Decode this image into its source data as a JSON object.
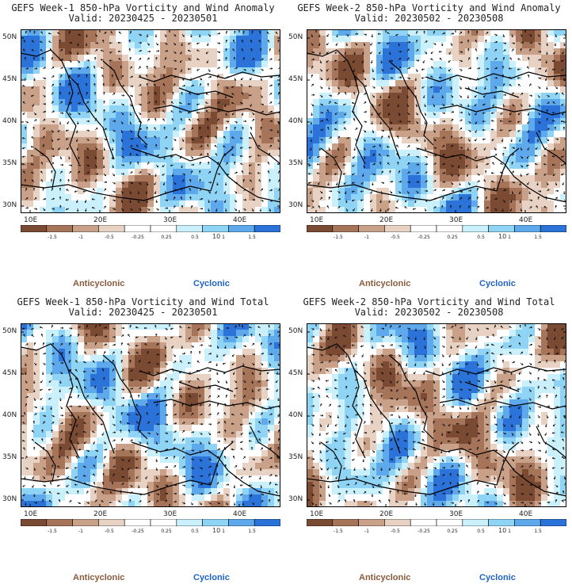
{
  "colors": {
    "brown_dark": "#7a4a32",
    "brown_mid": "#a67459",
    "brown_light": "#c9a189",
    "tan": "#e8d2c4",
    "white": "#ffffff",
    "cyan_light": "#c9f0fb",
    "blue_light": "#8fd4f4",
    "blue_mid": "#5ea8ec",
    "blue_dark": "#2b73d9",
    "anticyclonic_text": "#8b5a3c",
    "cyclonic_text": "#1f63c6"
  },
  "panels": [
    {
      "title": "GEFS Week-1 850-hPa Vorticity and Wind Anomaly",
      "valid": "Valid: 20230425 - 20230501",
      "field_seed": 1,
      "extra_label": "10",
      "legend": {
        "anticyclonic": "Anticyclonic",
        "cyclonic": "Cyclonic"
      }
    },
    {
      "title": "GEFS Week-2 850-hPa Vorticity and Wind Anomaly",
      "valid": "Valid: 20230502 - 20230508",
      "field_seed": 2,
      "extra_label": "10",
      "legend": {
        "anticyclonic": "Anticyclonic",
        "cyclonic": "Cyclonic"
      }
    },
    {
      "title": "GEFS Week-1 850-hPa Vorticity and Wind Total",
      "valid": "Valid: 20230425 - 20230501",
      "field_seed": 3,
      "extra_label": "10",
      "legend": {
        "anticyclonic": "Anticyclonic",
        "cyclonic": "Cyclonic"
      }
    },
    {
      "title": "GEFS Week-2 850-hPa Vorticity and Wind Total",
      "valid": "Valid: 20230502 - 20230508",
      "field_seed": 4,
      "extra_label": "10",
      "legend": {
        "anticyclonic": "Anticyclonic",
        "cyclonic": "Cyclonic"
      }
    }
  ],
  "lat_labels": [
    "50N",
    "45N",
    "40N",
    "35N",
    "30N"
  ],
  "lon_labels": [
    "10E",
    "20E",
    "30E",
    "40E"
  ],
  "colorbar_ticks": [
    "-1.5",
    "-1",
    "-0.5",
    "-0.25",
    "0.25",
    "0.5",
    "1",
    "1.5"
  ]
}
